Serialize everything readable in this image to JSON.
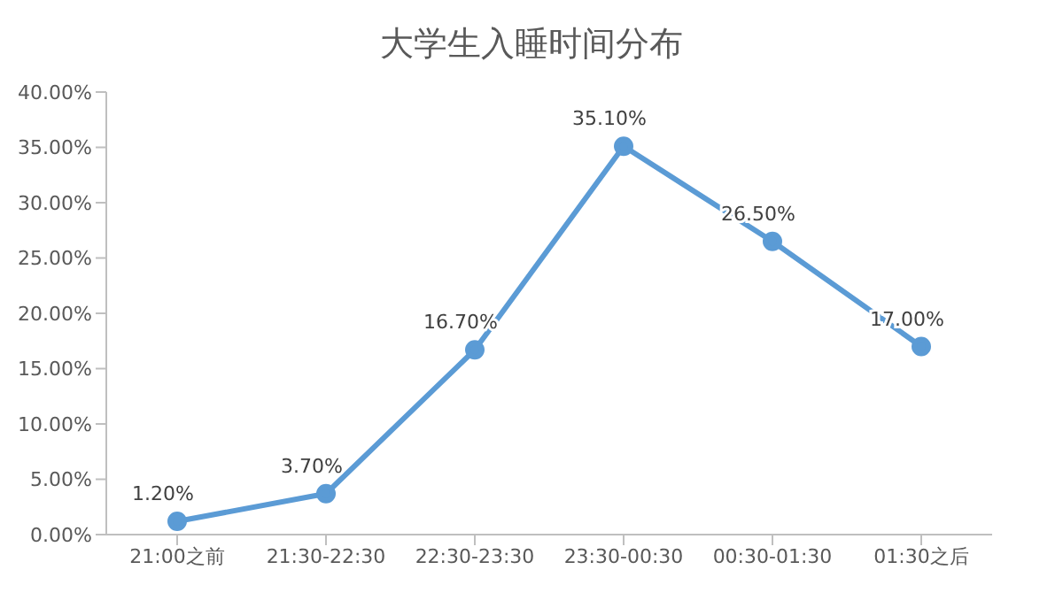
{
  "chart_data": {
    "type": "line",
    "title": "大学生入睡时间分布",
    "categories": [
      "21:00之前",
      "21:30-22:30",
      "22:30-23:30",
      "23:30-00:30",
      "00:30-01:30",
      "01:30之后"
    ],
    "series": [
      {
        "color": "#5b9bd5",
        "values": [
          1.2,
          3.7,
          16.7,
          35.1,
          26.5,
          17.0
        ],
        "value_labels": [
          "1.20%",
          "3.70%",
          "16.70%",
          "35.10%",
          "26.50%",
          "17.00%"
        ]
      }
    ],
    "ylim": [
      0,
      40
    ],
    "yticks": [
      {
        "value": 0,
        "label": "0.00%"
      },
      {
        "value": 5,
        "label": "5.00%"
      },
      {
        "value": 10,
        "label": "10.00%"
      },
      {
        "value": 15,
        "label": "15.00%"
      },
      {
        "value": 20,
        "label": "20.00%"
      },
      {
        "value": 25,
        "label": "25.00%"
      },
      {
        "value": 30,
        "label": "30.00%"
      },
      {
        "value": 35,
        "label": "35.00%"
      },
      {
        "value": 40,
        "label": "40.00%"
      }
    ],
    "grid": false,
    "legend": false,
    "marker": "circle",
    "line_style": "solid"
  }
}
